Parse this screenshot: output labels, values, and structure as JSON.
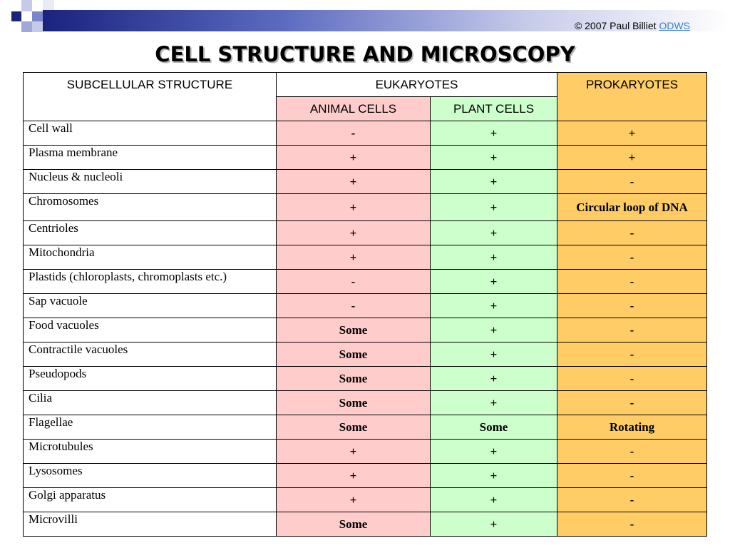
{
  "copyright": {
    "text": "© 2007 Paul Billiet",
    "link": "ODWS"
  },
  "title": "CELL STRUCTURE AND MICROSCOPY",
  "headers": {
    "structure": "SUBCELLULAR STRUCTURE",
    "eukaryotes": "EUKARYOTES",
    "prokaryotes": "PROKARYOTES",
    "animal": "ANIMAL CELLS",
    "plant": "PLANT CELLS"
  },
  "rows": [
    {
      "name": "Cell wall",
      "animal": "-",
      "plant": "+",
      "prok": "+"
    },
    {
      "name": "Plasma membrane",
      "animal": "+",
      "plant": "+",
      "prok": "+"
    },
    {
      "name": "Nucleus & nucleoli",
      "animal": "+",
      "plant": "+",
      "prok": "-"
    },
    {
      "name": "Chromosomes",
      "animal": "+",
      "plant": "+",
      "prok": "Circular loop of DNA"
    },
    {
      "name": "Centrioles",
      "animal": "+",
      "plant": "+",
      "prok": "-"
    },
    {
      "name": "Mitochondria",
      "animal": "+",
      "plant": "+",
      "prok": "-"
    },
    {
      "name": "Plastids (chloroplasts, chromoplasts etc.)",
      "animal": "-",
      "plant": "+",
      "prok": "-"
    },
    {
      "name": "Sap vacuole",
      "animal": "-",
      "plant": "+",
      "prok": "-"
    },
    {
      "name": "Food vacuoles",
      "animal": "Some",
      "plant": "+",
      "prok": "-"
    },
    {
      "name": "Contractile vacuoles",
      "animal": "Some",
      "plant": "+",
      "prok": "-"
    },
    {
      "name": "Pseudopods",
      "animal": "Some",
      "plant": "+",
      "prok": "-"
    },
    {
      "name": "Cilia",
      "animal": "Some",
      "plant": "+",
      "prok": "-"
    },
    {
      "name": "Flagellae",
      "animal": "Some",
      "plant": "Some",
      "prok": "Rotating"
    },
    {
      "name": "Microtubules",
      "animal": "+",
      "plant": "+",
      "prok": "-"
    },
    {
      "name": "Lysosomes",
      "animal": "+",
      "plant": "+",
      "prok": "-"
    },
    {
      "name": "Golgi apparatus",
      "animal": "+",
      "plant": "+",
      "prok": "-"
    },
    {
      "name": "Microvilli",
      "animal": "Some",
      "plant": "+",
      "prok": "-"
    }
  ],
  "colors": {
    "animal": "#ffcccc",
    "plant": "#ccffcc",
    "prokaryotes": "#ffcc66",
    "header_bar": "#1a237e"
  }
}
